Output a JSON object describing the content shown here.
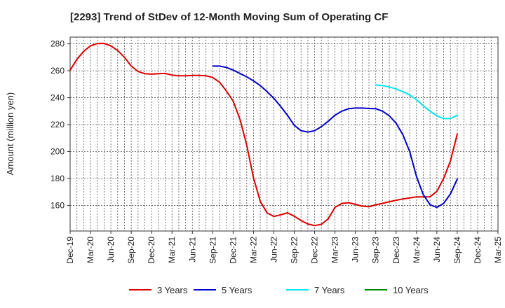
{
  "chart_data": {
    "type": "line",
    "title": "[2293]  Trend of StDev of 12-Month Moving Sum of Operating CF",
    "xlabel": "",
    "ylabel": "Amount (million yen)",
    "ylim": [
      141,
      285
    ],
    "yticks": [
      160,
      180,
      200,
      220,
      240,
      260,
      280
    ],
    "x_range": [
      "2019-12",
      "2025-03"
    ],
    "x_tick_labels": [
      "Dec-19",
      "Mar-20",
      "Jun-20",
      "Sep-20",
      "Dec-20",
      "Mar-21",
      "Jun-21",
      "Sep-21",
      "Dec-21",
      "Mar-22",
      "Jun-22",
      "Sep-22",
      "Dec-22",
      "Mar-23",
      "Jun-23",
      "Sep-23",
      "Dec-23",
      "Mar-24",
      "Jun-24",
      "Sep-24",
      "Dec-24",
      "Mar-25"
    ],
    "grid": true,
    "legend_position": "bottom",
    "series": [
      {
        "name": "3 Years",
        "color": "#dd0000",
        "x": [
          "2019-12",
          "2020-01",
          "2020-02",
          "2020-03",
          "2020-04",
          "2020-05",
          "2020-06",
          "2020-07",
          "2020-08",
          "2020-09",
          "2020-10",
          "2020-11",
          "2020-12",
          "2021-01",
          "2021-02",
          "2021-03",
          "2021-04",
          "2021-05",
          "2021-06",
          "2021-07",
          "2021-08",
          "2021-09",
          "2021-10",
          "2021-11",
          "2021-12",
          "2022-01",
          "2022-02",
          "2022-03",
          "2022-04",
          "2022-05",
          "2022-06",
          "2022-07",
          "2022-08",
          "2022-09",
          "2022-10",
          "2022-11",
          "2022-12",
          "2023-01",
          "2023-02",
          "2023-03",
          "2023-04",
          "2023-05",
          "2023-06",
          "2023-07",
          "2023-08",
          "2023-09",
          "2023-10",
          "2023-11",
          "2023-12",
          "2024-01",
          "2024-02",
          "2024-03",
          "2024-04",
          "2024-05",
          "2024-06",
          "2024-07",
          "2024-08",
          "2024-09"
        ],
        "values": [
          260.5,
          268.5,
          274.5,
          278.5,
          280.2,
          280.3,
          278.5,
          275.0,
          270.0,
          263.5,
          259.5,
          257.8,
          257.5,
          257.8,
          258.0,
          256.8,
          256.3,
          256.3,
          256.5,
          256.5,
          256.3,
          255.0,
          251.5,
          245.0,
          237.5,
          224.0,
          205.0,
          180.5,
          163.0,
          154.5,
          151.8,
          153.0,
          154.5,
          152.0,
          148.8,
          146.2,
          145.0,
          146.0,
          150.0,
          158.5,
          161.5,
          162.0,
          160.8,
          159.5,
          159.0,
          160.5,
          161.5,
          162.8,
          163.8,
          164.8,
          165.6,
          166.3,
          166.3,
          166.4,
          170.5,
          180.0,
          193.0,
          213.0
        ]
      },
      {
        "name": "5 Years",
        "color": "#0000cc",
        "x": [
          "2021-09",
          "2021-10",
          "2021-11",
          "2021-12",
          "2022-01",
          "2022-02",
          "2022-03",
          "2022-04",
          "2022-05",
          "2022-06",
          "2022-07",
          "2022-08",
          "2022-09",
          "2022-10",
          "2022-11",
          "2022-12",
          "2023-01",
          "2023-02",
          "2023-03",
          "2023-04",
          "2023-05",
          "2023-06",
          "2023-07",
          "2023-08",
          "2023-09",
          "2023-10",
          "2023-11",
          "2023-12",
          "2024-01",
          "2024-02",
          "2024-03",
          "2024-04",
          "2024-05",
          "2024-06",
          "2024-07",
          "2024-08",
          "2024-09"
        ],
        "values": [
          263.5,
          263.5,
          262.5,
          260.5,
          258.0,
          255.5,
          252.5,
          249.0,
          244.5,
          239.5,
          233.5,
          227.0,
          219.5,
          215.5,
          214.5,
          215.5,
          218.5,
          222.5,
          227.0,
          230.0,
          231.8,
          232.3,
          232.3,
          232.0,
          231.8,
          230.0,
          226.5,
          221.0,
          212.5,
          200.0,
          181.5,
          168.0,
          160.5,
          158.5,
          161.5,
          168.5,
          179.5
        ]
      },
      {
        "name": "7 Years",
        "color": "#00e5ee",
        "x": [
          "2023-09",
          "2023-10",
          "2023-11",
          "2023-12",
          "2024-01",
          "2024-02",
          "2024-03",
          "2024-04",
          "2024-05",
          "2024-06",
          "2024-07",
          "2024-08",
          "2024-09"
        ],
        "values": [
          249.5,
          249.0,
          248.0,
          246.5,
          244.5,
          242.0,
          238.5,
          234.0,
          230.0,
          226.5,
          224.5,
          224.5,
          227.0
        ]
      },
      {
        "name": "10 Years",
        "color": "#008800",
        "x": [],
        "values": []
      }
    ]
  }
}
